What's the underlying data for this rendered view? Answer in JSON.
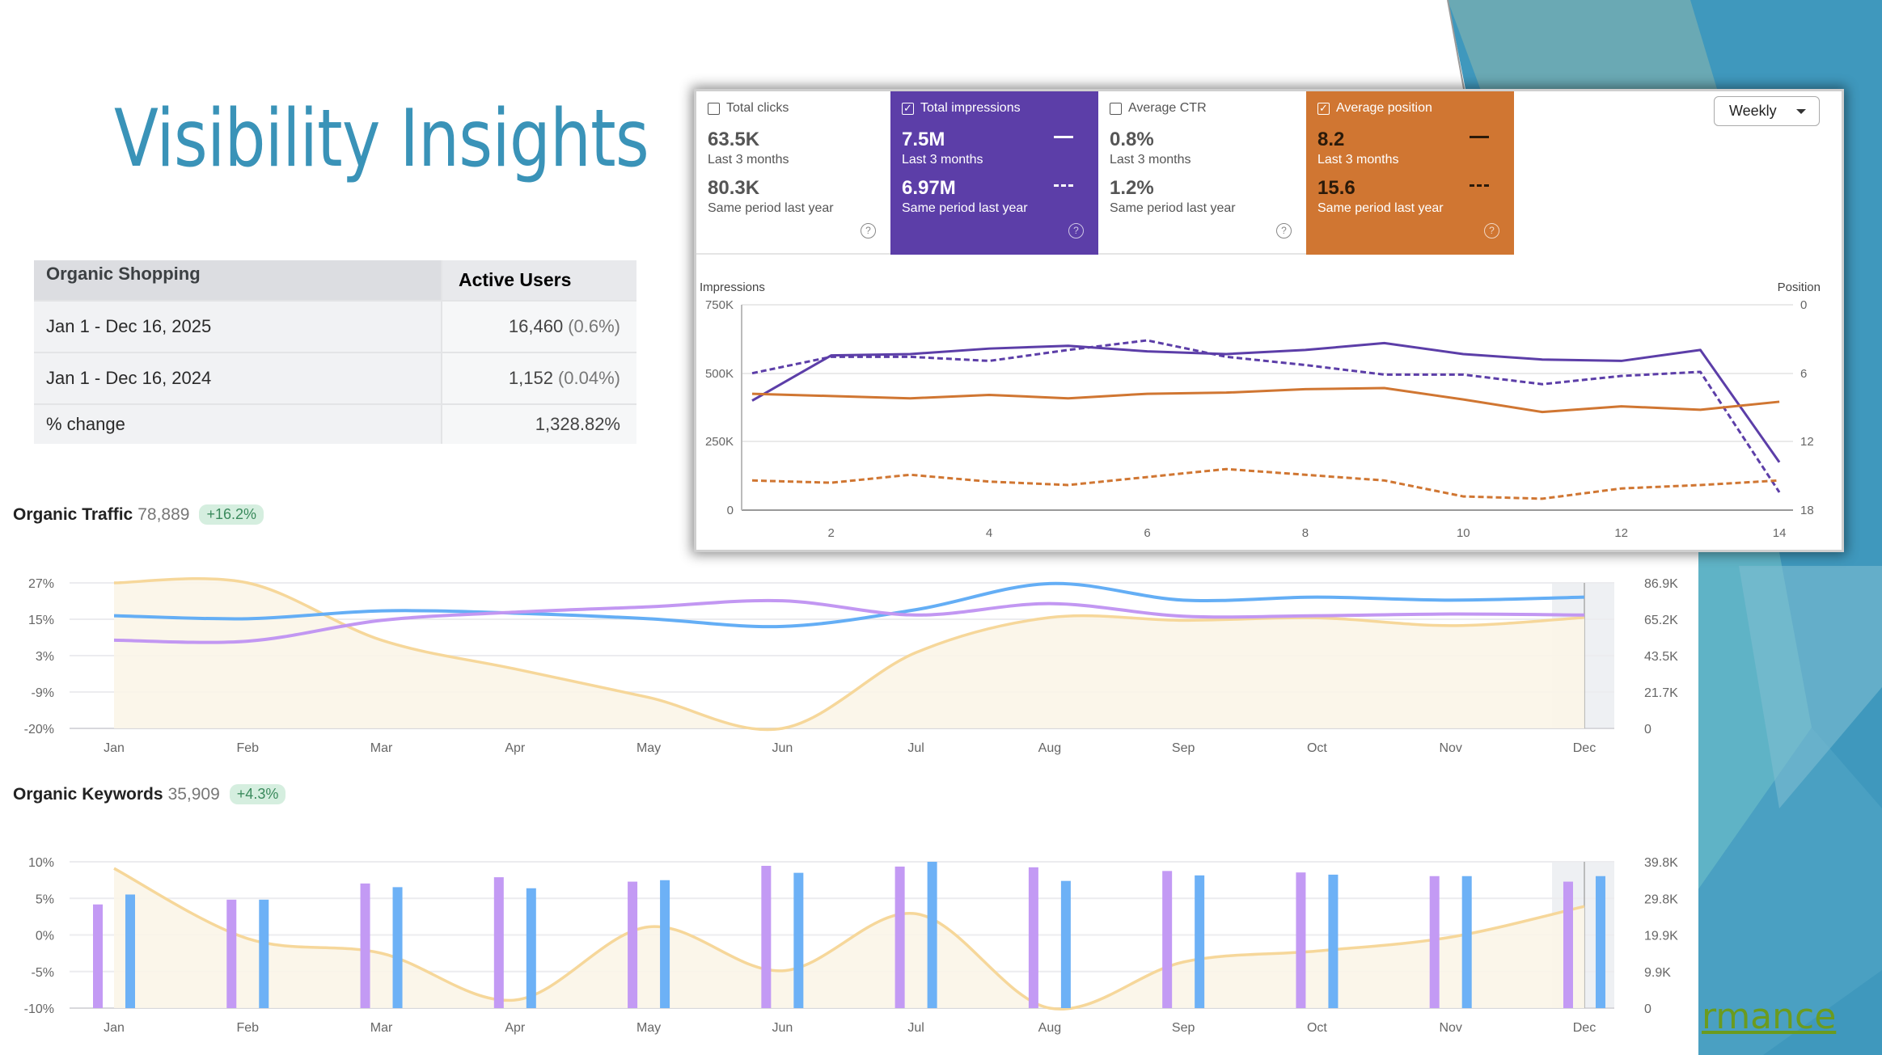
{
  "slide": {
    "title": "Visibility Insights",
    "link_fragment": "rmance",
    "colors": {
      "title": "#3a93b8",
      "background_accent": "#3f98bd",
      "link": "#6b9b1f"
    }
  },
  "table": {
    "headers": [
      "Organic Shopping",
      "Active Users"
    ],
    "rows": [
      {
        "label": "Jan 1 - Dec 16, 2025",
        "value": "16,460",
        "share": "(0.6%)"
      },
      {
        "label": "Jan 1 - Dec 16, 2024",
        "value": "1,152",
        "share": "(0.04%)"
      },
      {
        "label": "% change",
        "value": "1,328.82%",
        "share": ""
      }
    ]
  },
  "search_console": {
    "granularity": "Weekly",
    "cards": [
      {
        "label": "Total clicks",
        "checked": false,
        "value": "63.5K",
        "period": "Last 3 months",
        "prev_value": "80.3K",
        "prev_period": "Same period last year",
        "color": "#ffffff"
      },
      {
        "label": "Total impressions",
        "checked": true,
        "value": "7.5M",
        "period": "Last 3 months",
        "prev_value": "6.97M",
        "prev_period": "Same period last year",
        "color": "#5c3ea8"
      },
      {
        "label": "Average CTR",
        "checked": false,
        "value": "0.8%",
        "period": "Last 3 months",
        "prev_value": "1.2%",
        "prev_period": "Same period last year",
        "color": "#ffffff"
      },
      {
        "label": "Average position",
        "checked": true,
        "value": "8.2",
        "period": "Last 3 months",
        "prev_value": "15.6",
        "prev_period": "Same period last year",
        "color": "#d07632"
      }
    ]
  },
  "chart_data": [
    {
      "type": "line",
      "ylabel": "Impressions",
      "y2label": "Position",
      "x": [
        1,
        2,
        3,
        4,
        5,
        6,
        7,
        8,
        9,
        10,
        11,
        12,
        13,
        14
      ],
      "xticks": [
        "2",
        "4",
        "6",
        "8",
        "10",
        "12",
        "14"
      ],
      "yticks": [
        "750K",
        "500K",
        "250K",
        "0"
      ],
      "y2ticks": [
        "0",
        "6",
        "12",
        "18"
      ],
      "ylim": [
        0,
        750000
      ],
      "y2lim": [
        18,
        0
      ],
      "series": [
        {
          "axis": "left",
          "style": "solid",
          "color": "#5c3ea8",
          "values": [
            400000,
            565000,
            570000,
            590000,
            600000,
            580000,
            570000,
            585000,
            610000,
            570000,
            550000,
            545000,
            585000,
            175000
          ]
        },
        {
          "axis": "left",
          "style": "dashed",
          "color": "#5c3ea8",
          "values": [
            500000,
            560000,
            560000,
            545000,
            585000,
            620000,
            560000,
            530000,
            495000,
            495000,
            460000,
            490000,
            505000,
            65000
          ]
        },
        {
          "axis": "right",
          "style": "solid",
          "color": "#d07632",
          "values": [
            7.8,
            8.0,
            8.2,
            7.9,
            8.2,
            7.8,
            7.7,
            7.4,
            7.3,
            8.3,
            9.4,
            8.9,
            9.2,
            8.5
          ]
        },
        {
          "axis": "right",
          "style": "dashed",
          "color": "#d07632",
          "values": [
            15.4,
            15.6,
            14.9,
            15.5,
            15.8,
            15.1,
            14.4,
            14.9,
            15.4,
            16.8,
            17.0,
            16.1,
            15.8,
            15.4
          ]
        }
      ],
      "grid": true
    },
    {
      "type": "area",
      "title": "Organic Traffic",
      "total": "78,889",
      "change": "+16.2%",
      "categories": [
        "Jan",
        "Feb",
        "Mar",
        "Apr",
        "May",
        "Jun",
        "Jul",
        "Aug",
        "Sep",
        "Oct",
        "Nov",
        "Dec"
      ],
      "yticks": [
        "27%",
        "15%",
        "3%",
        "-9%",
        "-20%"
      ],
      "y2ticks": [
        "86.9K",
        "65.2K",
        "43.5K",
        "21.7K",
        "0"
      ],
      "ylim": [
        -20,
        27
      ],
      "y2lim": [
        0,
        86900
      ],
      "series": [
        {
          "axis": "left",
          "kind": "area",
          "color": "#f6d79a",
          "values": [
            27,
            27,
            8.5,
            -0.8,
            -10,
            -20,
            4.5,
            15.8,
            14.9,
            15.7,
            13.2,
            15.8
          ]
        },
        {
          "axis": "right",
          "kind": "line",
          "color": "#64aef5",
          "values": [
            67300,
            65500,
            70200,
            68800,
            65500,
            60900,
            70900,
            86500,
            76600,
            78400,
            76600,
            78400
          ]
        },
        {
          "axis": "right",
          "kind": "line",
          "color": "#c297f2",
          "values": [
            52700,
            52100,
            64500,
            69400,
            72600,
            76200,
            67700,
            74500,
            67000,
            67300,
            68300,
            67700
          ]
        }
      ],
      "grid": true
    },
    {
      "type": "bar",
      "title": "Organic Keywords",
      "total": "35,909",
      "change": "+4.3%",
      "categories": [
        "Jan",
        "Feb",
        "Mar",
        "Apr",
        "May",
        "Jun",
        "Jul",
        "Aug",
        "Sep",
        "Oct",
        "Nov",
        "Dec"
      ],
      "yticks": [
        "10%",
        "5%",
        "0%",
        "-5%",
        "-10%"
      ],
      "y2ticks": [
        "39.8K",
        "29.8K",
        "19.9K",
        "9.9K",
        "0"
      ],
      "ylim": [
        -10,
        10
      ],
      "y2lim": [
        0,
        39800
      ],
      "series": [
        {
          "axis": "left",
          "kind": "area",
          "color": "#f6d79a",
          "values": [
            9.1,
            -0.5,
            -2.5,
            -8.9,
            1.1,
            -4.9,
            2.9,
            -10,
            -3.7,
            -2.2,
            -0.3,
            3.9
          ]
        },
        {
          "axis": "right",
          "kind": "bar",
          "color": "#c39af4",
          "values": [
            28200,
            29500,
            33900,
            35600,
            34400,
            38700,
            38500,
            38300,
            37300,
            36900,
            35900,
            34400
          ]
        },
        {
          "axis": "right",
          "kind": "bar",
          "color": "#6db1f6",
          "values": [
            30900,
            29500,
            32900,
            32600,
            34800,
            36800,
            39800,
            34600,
            36100,
            36300,
            35900,
            35900
          ]
        }
      ],
      "grid": true
    }
  ]
}
